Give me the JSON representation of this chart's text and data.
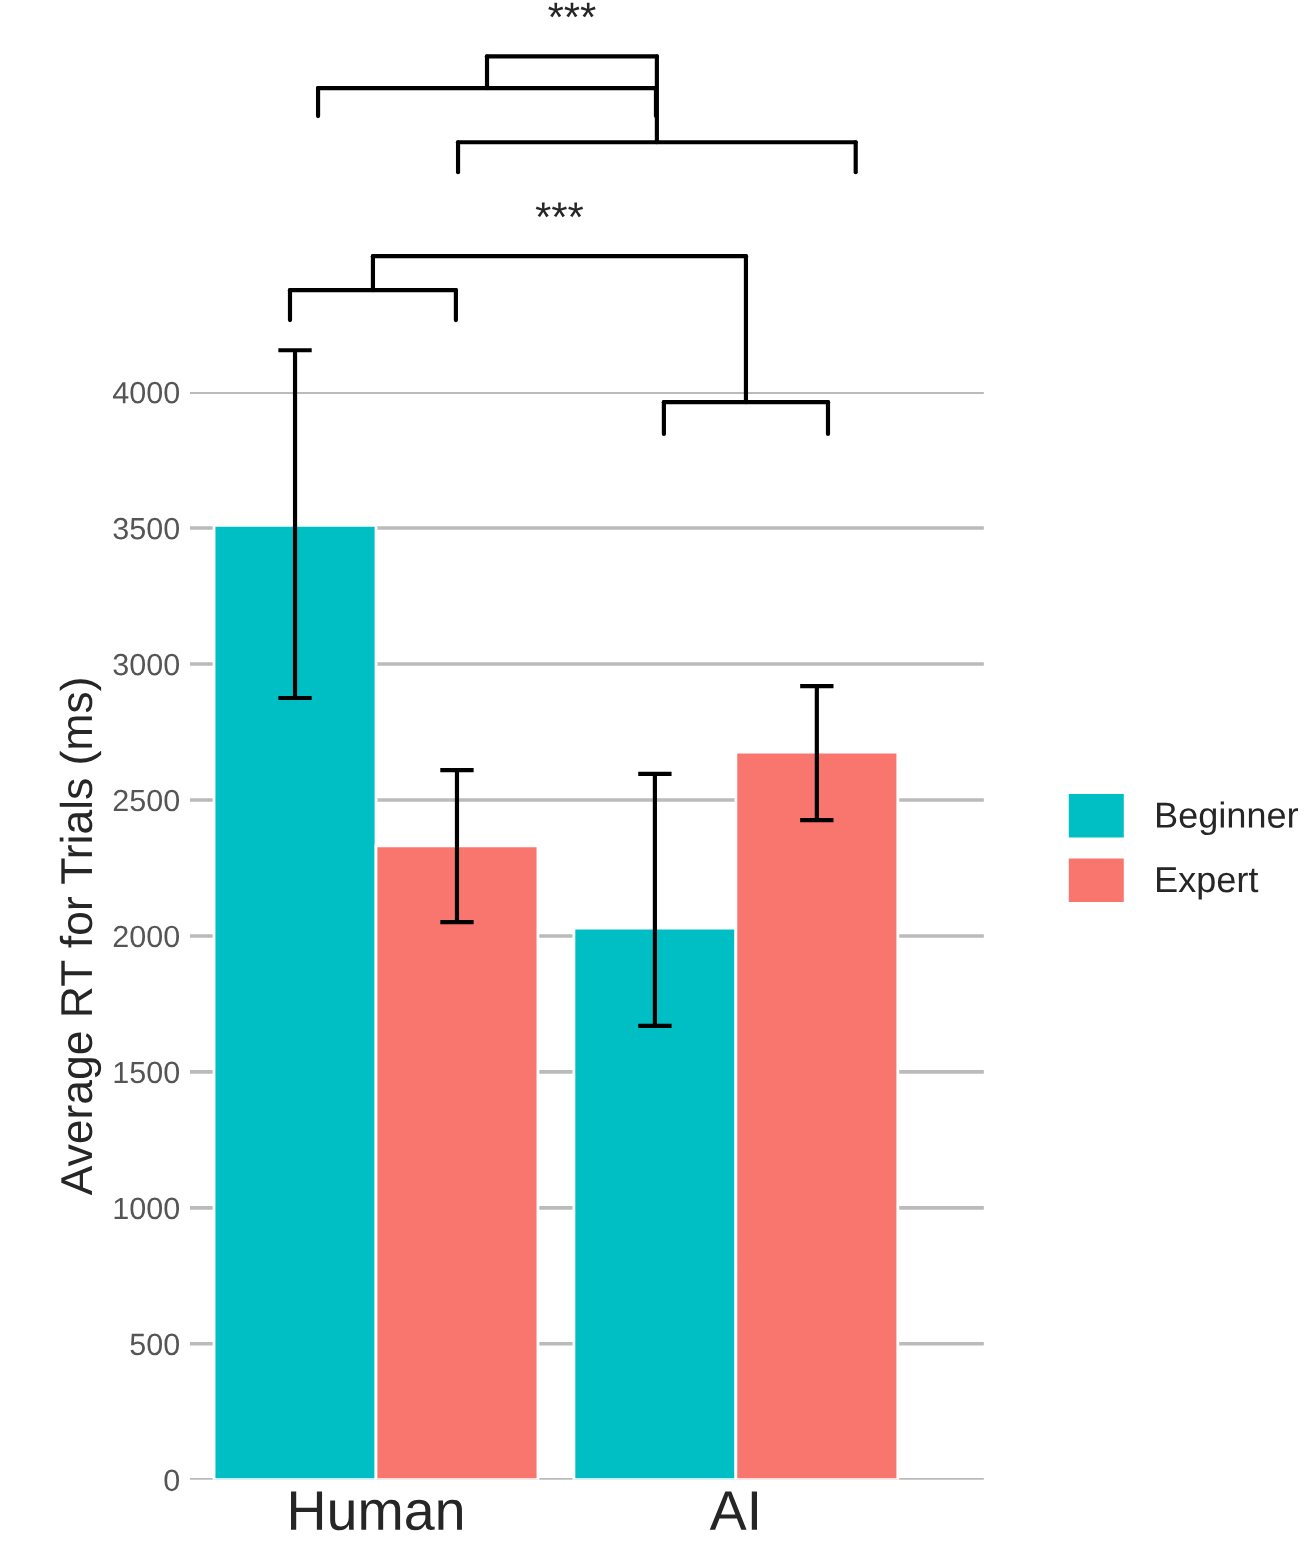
{
  "chart_data": {
    "type": "bar",
    "ylabel": "Average RT for Trials (ms)",
    "categories": [
      "Human",
      "AI"
    ],
    "series": [
      {
        "name": "Beginner",
        "color": "#00bfc4",
        "values": [
          3510,
          2029
        ],
        "errors": [
          [
            2875,
            4154
          ],
          [
            1669,
            2596
          ]
        ]
      },
      {
        "name": "Expert",
        "color": "#f8766d",
        "values": [
          2331,
          2676
        ],
        "errors": [
          [
            2051,
            2610
          ],
          [
            2426,
            2919
          ]
        ]
      }
    ],
    "ylim": [
      0,
      4000
    ],
    "yticks": [
      0,
      500,
      1000,
      1500,
      2000,
      2500,
      3000,
      3500,
      4000
    ],
    "grid": "y",
    "legend": "right",
    "annotations": [
      "***",
      "***"
    ]
  }
}
